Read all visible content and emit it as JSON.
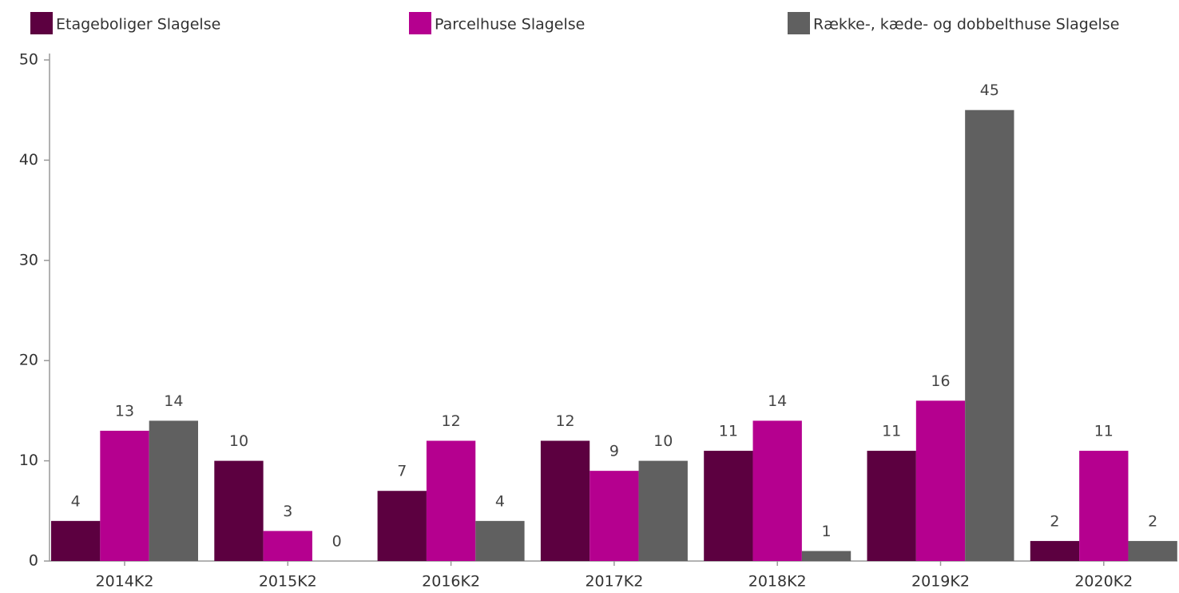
{
  "chart_data": {
    "type": "bar",
    "categories": [
      "2014K2",
      "2015K2",
      "2016K2",
      "2017K2",
      "2018K2",
      "2019K2",
      "2020K2"
    ],
    "series": [
      {
        "name": "Etageboliger Slagelse",
        "color": "#5c0040",
        "values": [
          4,
          10,
          7,
          12,
          11,
          11,
          2
        ]
      },
      {
        "name": "Parcelhuse Slagelse",
        "color": "#b5008f",
        "values": [
          13,
          3,
          12,
          9,
          14,
          16,
          11
        ]
      },
      {
        "name": "Række-, kæde- og dobbelthuse Slagelse",
        "color": "#606060",
        "values": [
          14,
          0,
          4,
          10,
          1,
          45,
          2
        ]
      }
    ],
    "ylim": [
      0,
      50
    ],
    "yticks": [
      0,
      10,
      20,
      30,
      40,
      50
    ],
    "grid": false,
    "legend": "top"
  }
}
